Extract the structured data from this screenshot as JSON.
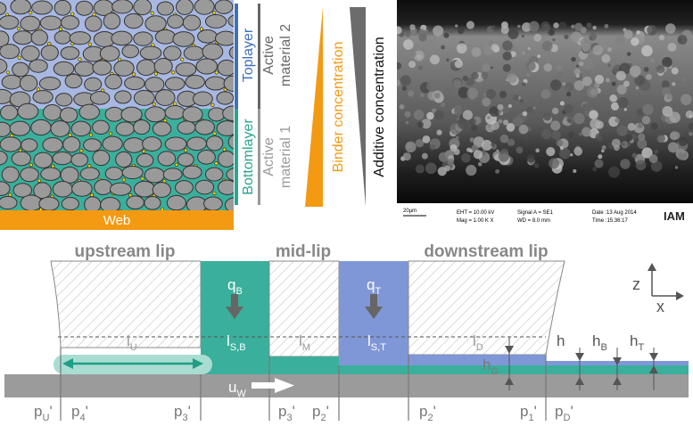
{
  "illustration": {
    "web": "Web",
    "toplayer": "Toplayer",
    "bottomlayer": "Bottomlayer",
    "active_material_2": [
      "Active",
      "material 2"
    ],
    "active_material_1": [
      "Active",
      "material 1"
    ],
    "binder": "Binder concentration",
    "additive": "Additive concentration"
  },
  "sem": {
    "scale": "20µm",
    "eht": "EHT = 10.00 kV",
    "mag": "Mag = 1.00 K X",
    "signal": "Signal A = SE1",
    "wd": "WD = 8.0 mm",
    "date": "Date :13 Aug 2014",
    "time": "Time :15:36:17",
    "logo": "IAM"
  },
  "schematic": {
    "lips": [
      "upstream lip",
      "mid-lip",
      "downstream lip"
    ],
    "flows": [
      {
        "base": "q",
        "sub": "B"
      },
      {
        "base": "q",
        "sub": "T"
      }
    ],
    "lengths": [
      {
        "base": "l",
        "sub": "U"
      },
      {
        "base": "l",
        "sub": "S,B"
      },
      {
        "base": "l",
        "sub": "M"
      },
      {
        "base": "l",
        "sub": "S,T"
      },
      {
        "base": "l",
        "sub": "D"
      }
    ],
    "heights": [
      {
        "base": "h",
        "sub": "G"
      },
      {
        "base": "h"
      },
      {
        "base": "h",
        "sub": "B"
      },
      {
        "base": "h",
        "sub": "T"
      }
    ],
    "velocity": {
      "base": "u",
      "sub": "W"
    },
    "axes": {
      "z": "z",
      "x": "x"
    },
    "pressures": [
      {
        "base": "p",
        "sub": "U",
        "post": "'"
      },
      {
        "base": "p",
        "sub": "4",
        "post": "'"
      },
      {
        "base": "p",
        "sub": "3",
        "post": "'"
      },
      {
        "base": "p",
        "sub": "3",
        "post": "'"
      },
      {
        "base": "p",
        "sub": "2",
        "post": "'"
      },
      {
        "base": "p",
        "sub": "2",
        "post": "'"
      },
      {
        "base": "p",
        "sub": "1",
        "post": "'"
      },
      {
        "base": "p",
        "sub": "D",
        "post": "'"
      }
    ]
  }
}
